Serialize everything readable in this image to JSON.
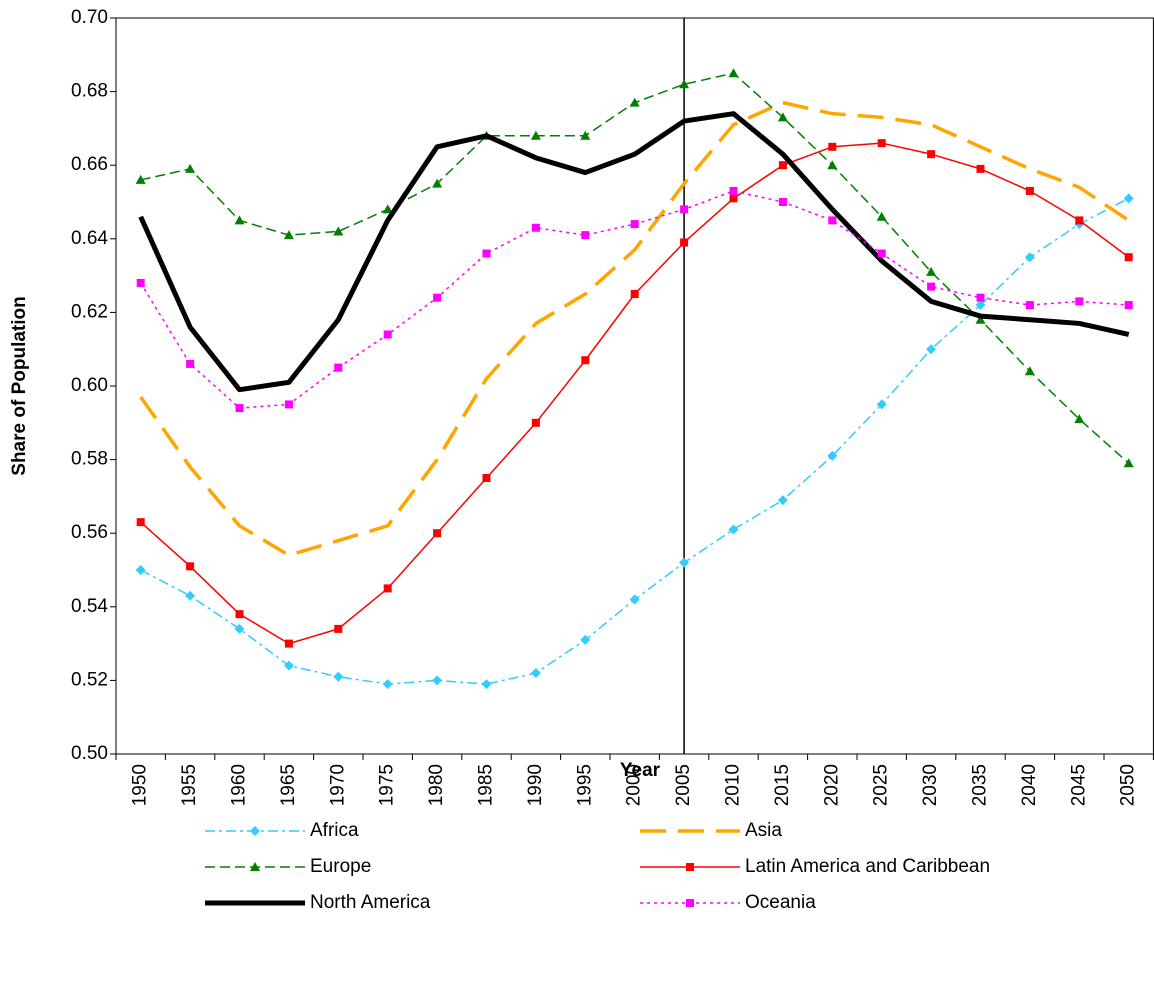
{
  "chart_data": {
    "type": "line",
    "xlabel": "Year",
    "ylabel": "Share of Population",
    "categories": [
      "1950",
      "1955",
      "1960",
      "1965",
      "1970",
      "1975",
      "1980",
      "1985",
      "1990",
      "1995",
      "2000",
      "2005",
      "2010",
      "2015",
      "2020",
      "2025",
      "2030",
      "2035",
      "2040",
      "2045",
      "2050"
    ],
    "ylim": [
      0.5,
      0.7
    ],
    "yticks": [
      {
        "value": 0.5,
        "label": "0.50"
      },
      0.52,
      0.54,
      0.56,
      0.58,
      {
        "value": 0.6,
        "label": "0.60"
      },
      0.62,
      0.64,
      0.66,
      0.68,
      {
        "value": 0.7,
        "label": "0.70"
      }
    ],
    "vline": "2005",
    "series": [
      {
        "name": "Africa",
        "color": "#33ccff",
        "marker": "diamond",
        "dash": "10 4 3 4",
        "width": 1.5,
        "values": [
          0.55,
          0.543,
          0.534,
          0.524,
          0.521,
          0.519,
          0.52,
          0.519,
          0.522,
          0.531,
          0.542,
          0.552,
          0.561,
          0.569,
          0.581,
          0.595,
          0.61,
          0.622,
          0.635,
          0.644,
          0.651
        ]
      },
      {
        "name": "Asia",
        "color": "#ffa500",
        "marker": "none",
        "dash": "26 12",
        "width": 3.5,
        "values": [
          0.597,
          0.578,
          0.562,
          0.554,
          0.558,
          0.562,
          0.58,
          0.602,
          0.617,
          0.625,
          0.637,
          0.655,
          0.671,
          0.677,
          0.674,
          0.673,
          0.671,
          0.665,
          0.659,
          0.654,
          0.645
        ]
      },
      {
        "name": "Europe",
        "color": "#008000",
        "marker": "triangle",
        "dash": "10 5",
        "width": 1.5,
        "values": [
          0.656,
          0.659,
          0.645,
          0.641,
          0.642,
          0.648,
          0.655,
          0.668,
          0.668,
          0.668,
          0.677,
          0.682,
          0.685,
          0.673,
          0.66,
          0.646,
          0.631,
          0.618,
          0.604,
          0.591,
          0.579
        ]
      },
      {
        "name": "Latin America and Caribbean",
        "color": "#ff0000",
        "marker": "square",
        "dash": "none",
        "width": 1.5,
        "values": [
          0.563,
          0.551,
          0.538,
          0.53,
          0.534,
          0.545,
          0.56,
          0.575,
          0.59,
          0.607,
          0.625,
          0.639,
          0.651,
          0.66,
          0.665,
          0.666,
          0.663,
          0.659,
          0.653,
          0.645,
          0.635
        ]
      },
      {
        "name": "North America",
        "color": "#000000",
        "marker": "none",
        "dash": "none",
        "width": 5,
        "values": [
          0.646,
          0.616,
          0.599,
          0.601,
          0.618,
          0.645,
          0.665,
          0.668,
          0.662,
          0.658,
          0.663,
          0.672,
          0.674,
          0.663,
          0.648,
          0.634,
          0.623,
          0.619,
          0.618,
          0.617,
          0.614
        ]
      },
      {
        "name": "Oceania",
        "color": "#ff00ff",
        "marker": "square",
        "dash": "3 4",
        "width": 1.5,
        "values": [
          0.628,
          0.606,
          0.594,
          0.595,
          0.605,
          0.614,
          0.624,
          0.636,
          0.643,
          0.641,
          0.644,
          0.648,
          0.653,
          0.65,
          0.645,
          0.636,
          0.627,
          0.624,
          0.622,
          0.623,
          0.622
        ]
      }
    ]
  }
}
